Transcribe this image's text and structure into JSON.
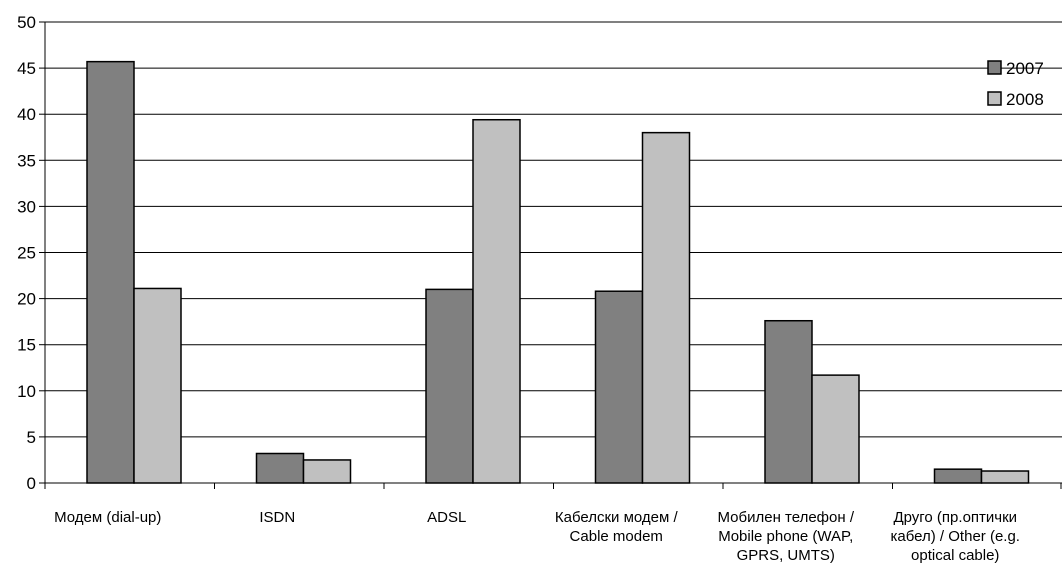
{
  "chart_data": {
    "type": "bar",
    "title": "",
    "xlabel": "",
    "ylabel": "",
    "ylim": [
      0,
      50
    ],
    "yticks": [
      0,
      5,
      10,
      15,
      20,
      25,
      30,
      35,
      40,
      45,
      50
    ],
    "grid": true,
    "legend_position": "top-right",
    "categories": [
      [
        "Модем (dial-up)"
      ],
      [
        "ISDN"
      ],
      [
        "ADSL"
      ],
      [
        "Кабелски модем /",
        "Cable modem"
      ],
      [
        "Мобилен телефон /",
        "Mobile phone (WAP,",
        "GPRS, UMTS)"
      ],
      [
        "Друго (пр.оптички",
        "кабел) / Other (e.g.",
        "optical cable)"
      ]
    ],
    "series": [
      {
        "name": "2007",
        "color": "#808080",
        "values": [
          45.7,
          3.2,
          21.0,
          20.8,
          17.6,
          1.5
        ]
      },
      {
        "name": "2008",
        "color": "#c0c0c0",
        "values": [
          21.1,
          2.5,
          39.4,
          38.0,
          11.7,
          1.3
        ]
      }
    ]
  }
}
